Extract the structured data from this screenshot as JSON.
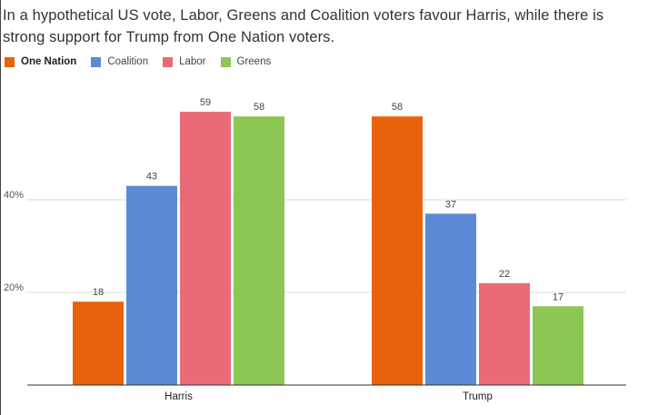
{
  "title": "In a hypothetical US vote, Labor, Greens and Coalition voters favour Harris, while there is strong support for Trump from One Nation voters.",
  "legend": [
    {
      "label": "One Nation",
      "color": "#e8620b"
    },
    {
      "label": "Coalition",
      "color": "#5b8bd6"
    },
    {
      "label": "Labor",
      "color": "#ea6a78"
    },
    {
      "label": "Greens",
      "color": "#8cc653"
    }
  ],
  "chart_data": {
    "type": "bar",
    "title": "In a hypothetical US vote, Labor, Greens and Coalition voters favour Harris, while there is strong support for Trump from One Nation voters.",
    "categories": [
      "Harris",
      "Trump"
    ],
    "series": [
      {
        "name": "One Nation",
        "color": "#e8620b",
        "values": [
          18,
          58
        ]
      },
      {
        "name": "Coalition",
        "color": "#5b8bd6",
        "values": [
          43,
          37
        ]
      },
      {
        "name": "Labor",
        "color": "#ea6a78",
        "values": [
          59,
          22
        ]
      },
      {
        "name": "Greens",
        "color": "#8cc653",
        "values": [
          58,
          17
        ]
      }
    ],
    "yticks": [
      {
        "value": 20,
        "label": "20%"
      },
      {
        "value": 40,
        "label": "40%"
      }
    ],
    "ylim": [
      0,
      60
    ],
    "grid": true,
    "legend_position": "top-left",
    "xlabel": "",
    "ylabel": ""
  }
}
